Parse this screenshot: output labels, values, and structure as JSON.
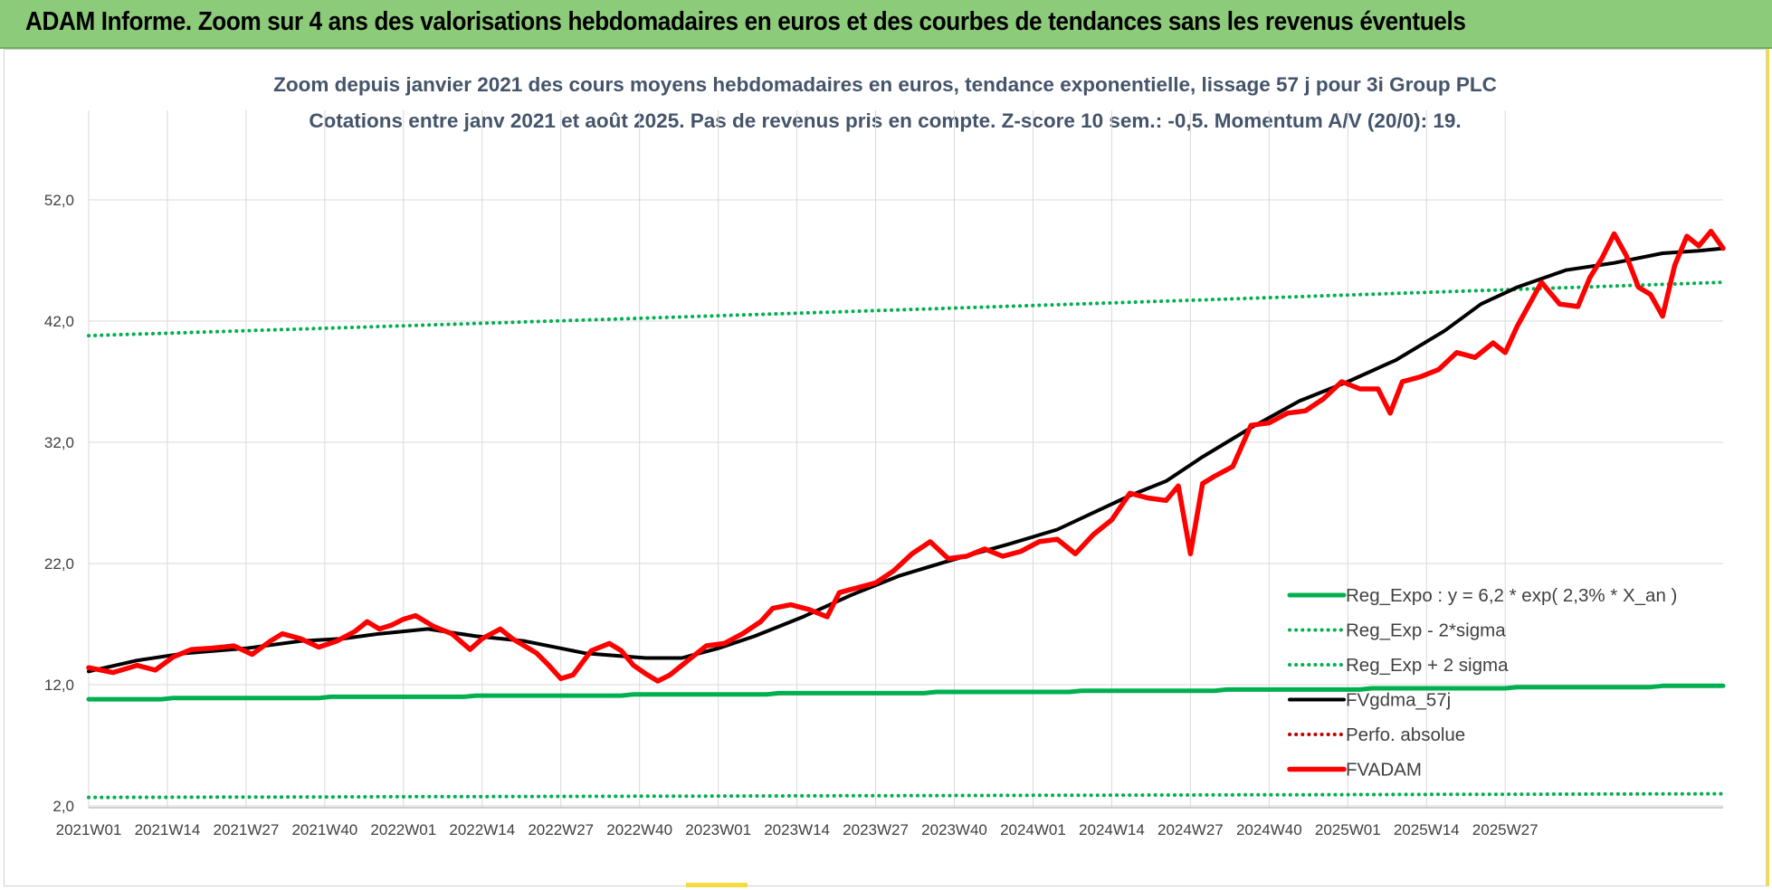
{
  "banner": {
    "title": "ADAM Informe. Zoom sur 4 ans des valorisations hebdomadaires en euros et des courbes de tendances sans les revenus éventuels"
  },
  "colors": {
    "banner_bg": "#8ccb7a",
    "reg_expo": "#00b050",
    "fvgdma": "#000000",
    "fvadam": "#ff0000",
    "perfo": "#c00000",
    "title_text": "#44546a"
  },
  "chart_data": {
    "type": "line",
    "title_line1": "Zoom depuis janvier 2021 des cours moyens hebdomadaires en euros, tendance exponentielle, lissage 57 j pour 3i Group PLC",
    "title_line2": "Cotations entre janv 2021 et août 2025.  Pas de revenus pris en compte. Z-score 10 sem.: -0,5. Momentum A/V (20/0): 19.",
    "x_tick_labels": [
      "2021W01",
      "2021W14",
      "2021W27",
      "2021W40",
      "2022W01",
      "2022W14",
      "2022W27",
      "2022W40",
      "2023W01",
      "2023W14",
      "2023W27",
      "2023W40",
      "2024W01",
      "2024W14",
      "2024W27",
      "2024W40",
      "2025W01",
      "2025W14",
      "2025W27"
    ],
    "y_tick_labels": [
      "2,0",
      "12,0",
      "22,0",
      "32,0",
      "42,0",
      "52,0"
    ],
    "ylim": [
      2,
      57
    ],
    "grid": true,
    "legend_position": "right-lower",
    "series": [
      {
        "name": "Reg_Expo : y = 6,2 * exp( 2,3% *  X_an )",
        "style": "solid-green",
        "start": 10.8,
        "end": 11.9
      },
      {
        "name": "Reg_Exp - 2*sigma",
        "style": "dotted-green",
        "start": 2.7,
        "end": 3.0
      },
      {
        "name": "Reg_Exp + 2 sigma",
        "style": "dotted-green",
        "start": 40.8,
        "end": 45.2
      },
      {
        "name": "FVgdma_57j",
        "style": "solid-black",
        "points": [
          [
            0,
            13.1
          ],
          [
            8,
            14.0
          ],
          [
            16,
            14.6
          ],
          [
            26,
            15.0
          ],
          [
            35,
            15.6
          ],
          [
            42,
            15.8
          ],
          [
            48,
            16.2
          ],
          [
            56,
            16.6
          ],
          [
            64,
            16.0
          ],
          [
            72,
            15.6
          ],
          [
            78,
            15.0
          ],
          [
            82,
            14.6
          ],
          [
            92,
            14.2
          ],
          [
            98,
            14.2
          ],
          [
            104,
            15.0
          ],
          [
            110,
            16.0
          ],
          [
            118,
            17.6
          ],
          [
            126,
            19.4
          ],
          [
            134,
            21.0
          ],
          [
            142,
            22.2
          ],
          [
            152,
            23.6
          ],
          [
            160,
            24.8
          ],
          [
            166,
            26.2
          ],
          [
            172,
            27.6
          ],
          [
            178,
            28.8
          ],
          [
            184,
            30.8
          ],
          [
            192,
            33.2
          ],
          [
            200,
            35.4
          ],
          [
            208,
            37.0
          ],
          [
            216,
            38.8
          ],
          [
            224,
            41.2
          ],
          [
            230,
            43.4
          ],
          [
            236,
            44.8
          ],
          [
            244,
            46.2
          ],
          [
            252,
            46.8
          ],
          [
            260,
            47.6
          ],
          [
            266,
            47.8
          ],
          [
            270,
            48.0
          ]
        ]
      },
      {
        "name": "Perfo. absolue",
        "style": "dotted-red",
        "points": []
      },
      {
        "name": "FVADAM",
        "style": "solid-red",
        "points": [
          [
            0,
            13.4
          ],
          [
            4,
            13.0
          ],
          [
            8,
            13.6
          ],
          [
            11,
            13.2
          ],
          [
            14,
            14.3
          ],
          [
            17,
            14.9
          ],
          [
            20,
            15.0
          ],
          [
            24,
            15.2
          ],
          [
            27,
            14.5
          ],
          [
            30,
            15.6
          ],
          [
            32,
            16.2
          ],
          [
            35,
            15.8
          ],
          [
            38,
            15.1
          ],
          [
            41,
            15.6
          ],
          [
            44,
            16.4
          ],
          [
            46,
            17.2
          ],
          [
            48,
            16.6
          ],
          [
            50,
            16.9
          ],
          [
            52,
            17.4
          ],
          [
            54,
            17.7
          ],
          [
            57,
            16.8
          ],
          [
            60,
            16.2
          ],
          [
            63,
            14.9
          ],
          [
            65,
            15.8
          ],
          [
            68,
            16.6
          ],
          [
            70,
            15.8
          ],
          [
            72,
            15.2
          ],
          [
            74,
            14.6
          ],
          [
            76,
            13.6
          ],
          [
            78,
            12.5
          ],
          [
            80,
            12.8
          ],
          [
            83,
            14.8
          ],
          [
            86,
            15.4
          ],
          [
            88,
            14.8
          ],
          [
            90,
            13.6
          ],
          [
            92,
            12.9
          ],
          [
            94,
            12.3
          ],
          [
            96,
            12.8
          ],
          [
            99,
            14.0
          ],
          [
            102,
            15.2
          ],
          [
            105,
            15.4
          ],
          [
            108,
            16.2
          ],
          [
            111,
            17.2
          ],
          [
            113,
            18.3
          ],
          [
            116,
            18.6
          ],
          [
            119,
            18.2
          ],
          [
            122,
            17.6
          ],
          [
            124,
            19.6
          ],
          [
            127,
            20.0
          ],
          [
            130,
            20.4
          ],
          [
            133,
            21.4
          ],
          [
            136,
            22.8
          ],
          [
            139,
            23.8
          ],
          [
            142,
            22.4
          ],
          [
            145,
            22.6
          ],
          [
            148,
            23.2
          ],
          [
            151,
            22.6
          ],
          [
            154,
            23.0
          ],
          [
            157,
            23.8
          ],
          [
            160,
            24.0
          ],
          [
            163,
            22.8
          ],
          [
            166,
            24.4
          ],
          [
            169,
            25.6
          ],
          [
            172,
            27.8
          ],
          [
            175,
            27.4
          ],
          [
            178,
            27.2
          ],
          [
            180,
            28.4
          ],
          [
            182,
            22.8
          ],
          [
            184,
            28.6
          ],
          [
            186,
            29.2
          ],
          [
            189,
            30.0
          ],
          [
            192,
            33.4
          ],
          [
            195,
            33.6
          ],
          [
            198,
            34.4
          ],
          [
            201,
            34.6
          ],
          [
            204,
            35.6
          ],
          [
            207,
            37.0
          ],
          [
            210,
            36.4
          ],
          [
            213,
            36.4
          ],
          [
            215,
            34.4
          ],
          [
            217,
            37.0
          ],
          [
            220,
            37.4
          ],
          [
            223,
            38.0
          ],
          [
            226,
            39.4
          ],
          [
            229,
            39.0
          ],
          [
            232,
            40.2
          ],
          [
            234,
            39.4
          ],
          [
            236,
            41.6
          ],
          [
            238,
            43.4
          ],
          [
            240,
            45.2
          ],
          [
            243,
            43.4
          ],
          [
            246,
            43.2
          ],
          [
            248,
            45.6
          ],
          [
            250,
            47.2
          ],
          [
            252,
            49.2
          ],
          [
            254,
            47.4
          ],
          [
            256,
            44.8
          ],
          [
            258,
            44.2
          ],
          [
            260,
            42.4
          ],
          [
            262,
            46.6
          ],
          [
            264,
            49.0
          ],
          [
            266,
            48.2
          ],
          [
            268,
            49.4
          ],
          [
            270,
            48.0
          ]
        ]
      }
    ],
    "x_count": 270
  }
}
